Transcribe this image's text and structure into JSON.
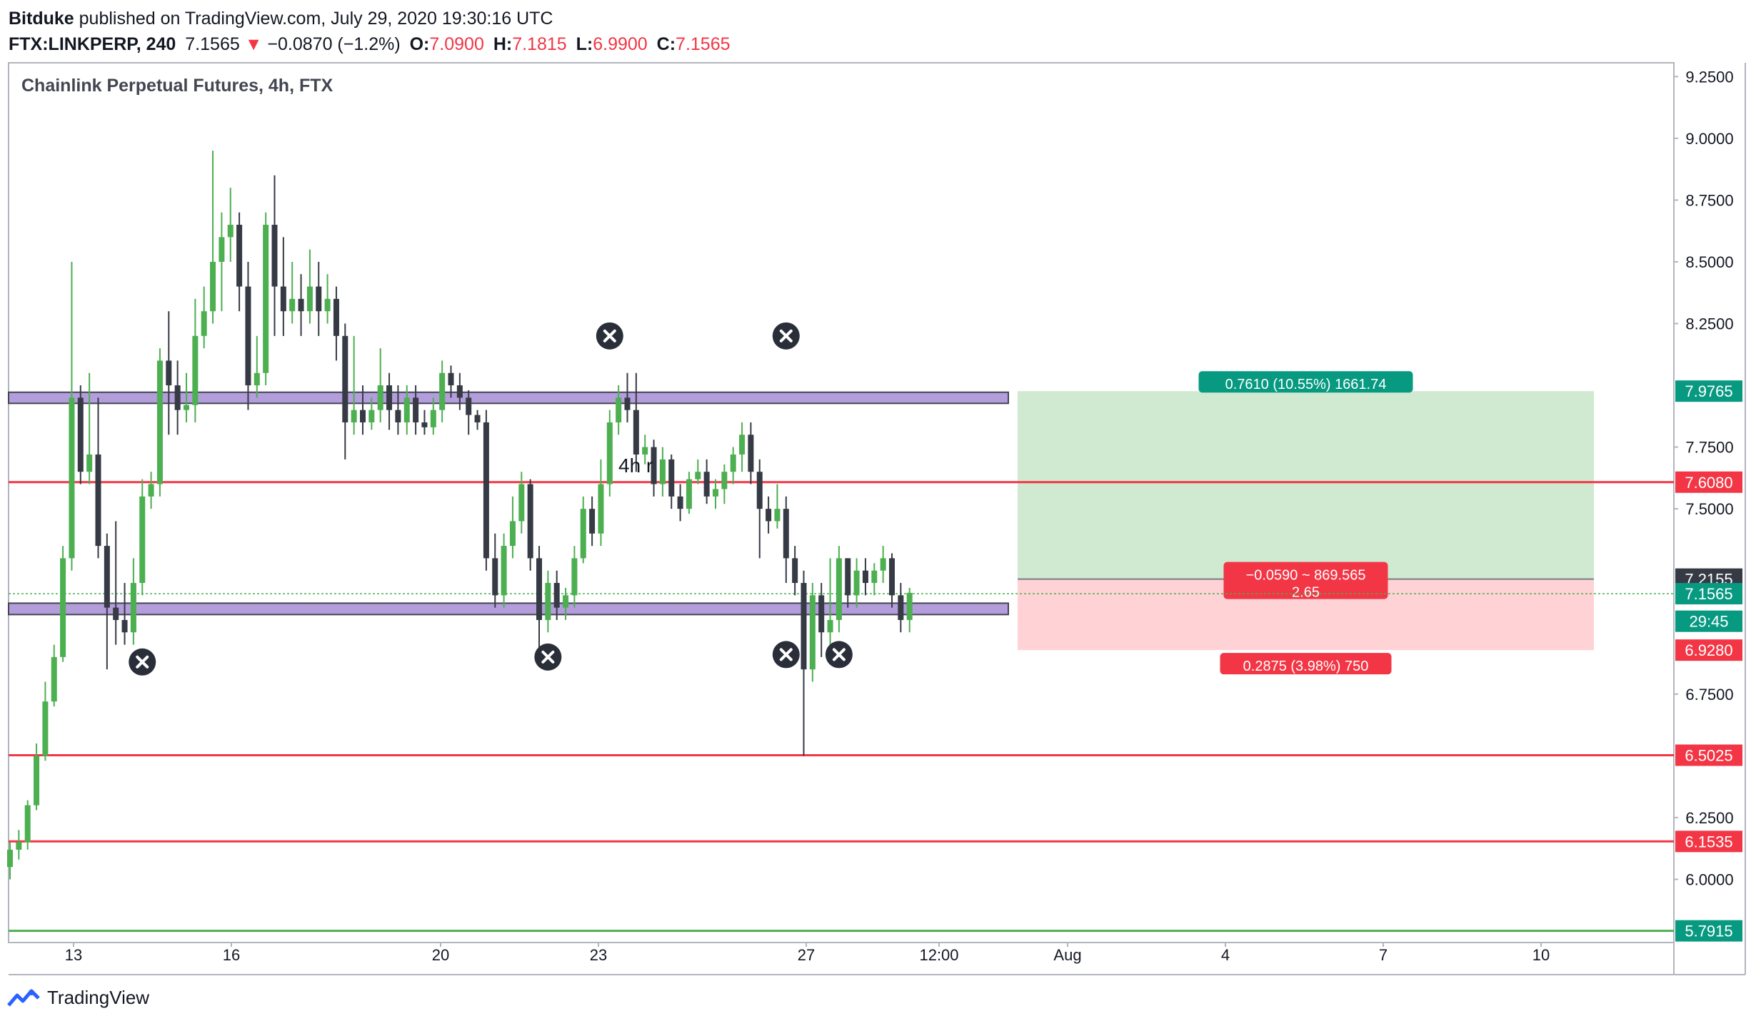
{
  "header": {
    "author": "Bitduke",
    "published_text": "published on TradingView.com, July 29, 2020 19:30:16 UTC",
    "symbol": "FTX:LINKPERP, 240",
    "last": "7.1565",
    "change": "−0.0870 (−1.2%)",
    "o_label": "O:",
    "o_value": "7.0900",
    "h_label": "H:",
    "h_value": "7.1815",
    "l_label": "L:",
    "l_value": "6.9900",
    "c_label": "C:",
    "c_value": "7.1565"
  },
  "footer": {
    "brand": "TradingView"
  },
  "colors": {
    "up": "#4caf50",
    "down": "#363a45",
    "red_line": "#f23645",
    "green_line": "#4caf50",
    "zone_fill": "#b39ddb",
    "zone_stroke": "#434651",
    "target_fill": "#c8e6c9",
    "stop_fill": "#ffcdd2",
    "label_green": "#089981",
    "label_red": "#f23645"
  },
  "chart_data": {
    "type": "candlestick",
    "title": "Chainlink Perpetual Futures, 4h, FTX",
    "ylim": [
      5.75,
      9.3
    ],
    "y_ticks": [
      "9.2500",
      "9.0000",
      "8.7500",
      "8.5000",
      "8.2500",
      "7.7500",
      "7.5000",
      "6.7500",
      "6.2500",
      "6.0000"
    ],
    "x_ticks": [
      "13",
      "16",
      "20",
      "23",
      "27",
      "12:00",
      "Aug",
      "4",
      "7",
      "10"
    ],
    "candles": [
      [
        6.05,
        6.12,
        6.0,
        6.15
      ],
      [
        6.12,
        6.15,
        6.08,
        6.2
      ],
      [
        6.15,
        6.3,
        6.12,
        6.32
      ],
      [
        6.3,
        6.5,
        6.28,
        6.55
      ],
      [
        6.5,
        6.72,
        6.48,
        6.8
      ],
      [
        6.72,
        6.9,
        6.7,
        6.95
      ],
      [
        6.9,
        7.3,
        6.88,
        7.35
      ],
      [
        7.3,
        7.95,
        7.25,
        8.5
      ],
      [
        7.95,
        7.65,
        7.6,
        8.0
      ],
      [
        7.65,
        7.72,
        7.6,
        8.05
      ],
      [
        7.72,
        7.35,
        7.3,
        7.95
      ],
      [
        7.35,
        7.1,
        6.85,
        7.4
      ],
      [
        7.1,
        7.05,
        6.95,
        7.45
      ],
      [
        7.05,
        7.0,
        6.95,
        7.2
      ],
      [
        7.0,
        7.2,
        6.95,
        7.3
      ],
      [
        7.2,
        7.55,
        7.15,
        7.62
      ],
      [
        7.55,
        7.6,
        7.5,
        7.65
      ],
      [
        7.6,
        8.1,
        7.55,
        8.15
      ],
      [
        8.1,
        8.0,
        7.8,
        8.3
      ],
      [
        8.0,
        7.9,
        7.8,
        8.1
      ],
      [
        7.9,
        7.92,
        7.85,
        8.05
      ],
      [
        7.92,
        8.2,
        7.85,
        8.35
      ],
      [
        8.2,
        8.3,
        8.15,
        8.4
      ],
      [
        8.3,
        8.5,
        8.25,
        8.95
      ],
      [
        8.5,
        8.6,
        8.3,
        8.7
      ],
      [
        8.6,
        8.65,
        8.5,
        8.8
      ],
      [
        8.65,
        8.4,
        8.3,
        8.7
      ],
      [
        8.4,
        8.0,
        7.9,
        8.5
      ],
      [
        8.0,
        8.05,
        7.95,
        8.2
      ],
      [
        8.05,
        8.65,
        8.0,
        8.7
      ],
      [
        8.65,
        8.4,
        8.2,
        8.85
      ],
      [
        8.4,
        8.3,
        8.2,
        8.6
      ],
      [
        8.3,
        8.35,
        8.25,
        8.5
      ],
      [
        8.35,
        8.3,
        8.2,
        8.45
      ],
      [
        8.3,
        8.4,
        8.25,
        8.55
      ],
      [
        8.4,
        8.3,
        8.2,
        8.5
      ],
      [
        8.3,
        8.35,
        8.25,
        8.45
      ],
      [
        8.35,
        8.2,
        8.1,
        8.4
      ],
      [
        8.2,
        7.85,
        7.7,
        8.25
      ],
      [
        7.85,
        7.9,
        7.8,
        8.2
      ],
      [
        7.9,
        7.85,
        7.8,
        8.0
      ],
      [
        7.85,
        7.9,
        7.82,
        7.95
      ],
      [
        7.9,
        8.0,
        7.85,
        8.15
      ],
      [
        8.0,
        7.9,
        7.82,
        8.05
      ],
      [
        7.9,
        7.85,
        7.8,
        8.0
      ],
      [
        7.85,
        7.95,
        7.8,
        8.0
      ],
      [
        7.95,
        7.85,
        7.8,
        8.0
      ],
      [
        7.85,
        7.83,
        7.8,
        7.9
      ],
      [
        7.83,
        7.9,
        7.8,
        7.95
      ],
      [
        7.9,
        8.05,
        7.85,
        8.1
      ],
      [
        8.05,
        8.0,
        7.95,
        8.08
      ],
      [
        8.0,
        7.95,
        7.9,
        8.05
      ],
      [
        7.95,
        7.88,
        7.8,
        7.98
      ],
      [
        7.88,
        7.85,
        7.82,
        7.9
      ],
      [
        7.85,
        7.3,
        7.25,
        7.9
      ],
      [
        7.3,
        7.15,
        7.1,
        7.4
      ],
      [
        7.15,
        7.35,
        7.1,
        7.4
      ],
      [
        7.35,
        7.45,
        7.3,
        7.55
      ],
      [
        7.45,
        7.6,
        7.4,
        7.65
      ],
      [
        7.6,
        7.3,
        7.25,
        7.62
      ],
      [
        7.3,
        7.05,
        6.9,
        7.35
      ],
      [
        7.05,
        7.2,
        7.0,
        7.25
      ],
      [
        7.2,
        7.1,
        7.05,
        7.25
      ],
      [
        7.1,
        7.15,
        7.05,
        7.18
      ],
      [
        7.15,
        7.3,
        7.1,
        7.35
      ],
      [
        7.3,
        7.5,
        7.28,
        7.55
      ],
      [
        7.5,
        7.4,
        7.35,
        7.55
      ],
      [
        7.4,
        7.6,
        7.35,
        7.7
      ],
      [
        7.6,
        7.85,
        7.55,
        7.9
      ],
      [
        7.85,
        7.95,
        7.8,
        8.0
      ],
      [
        7.95,
        7.9,
        7.85,
        8.05
      ],
      [
        7.9,
        7.72,
        7.65,
        8.05
      ],
      [
        7.72,
        7.75,
        7.68,
        7.8
      ],
      [
        7.75,
        7.6,
        7.55,
        7.78
      ],
      [
        7.6,
        7.7,
        7.55,
        7.75
      ],
      [
        7.7,
        7.55,
        7.5,
        7.72
      ],
      [
        7.55,
        7.5,
        7.45,
        7.6
      ],
      [
        7.5,
        7.62,
        7.48,
        7.65
      ],
      [
        7.62,
        7.65,
        7.6,
        7.7
      ],
      [
        7.65,
        7.55,
        7.52,
        7.7
      ],
      [
        7.55,
        7.58,
        7.5,
        7.62
      ],
      [
        7.58,
        7.65,
        7.52,
        7.68
      ],
      [
        7.65,
        7.72,
        7.6,
        7.75
      ],
      [
        7.72,
        7.8,
        7.65,
        7.85
      ],
      [
        7.8,
        7.65,
        7.6,
        7.85
      ],
      [
        7.65,
        7.5,
        7.3,
        7.7
      ],
      [
        7.5,
        7.45,
        7.4,
        7.55
      ],
      [
        7.45,
        7.5,
        7.42,
        7.6
      ],
      [
        7.5,
        7.3,
        7.2,
        7.55
      ],
      [
        7.3,
        7.2,
        7.15,
        7.35
      ],
      [
        7.2,
        6.85,
        6.5,
        7.25
      ],
      [
        6.85,
        7.15,
        6.8,
        7.2
      ],
      [
        7.15,
        7.0,
        6.9,
        7.2
      ],
      [
        7.0,
        7.05,
        6.95,
        7.3
      ],
      [
        7.05,
        7.3,
        7.0,
        7.35
      ],
      [
        7.3,
        7.15,
        7.1,
        7.3
      ],
      [
        7.15,
        7.25,
        7.1,
        7.3
      ],
      [
        7.25,
        7.2,
        7.15,
        7.3
      ],
      [
        7.2,
        7.25,
        7.15,
        7.28
      ],
      [
        7.25,
        7.3,
        7.2,
        7.35
      ],
      [
        7.3,
        7.15,
        7.1,
        7.32
      ],
      [
        7.15,
        7.05,
        7.0,
        7.2
      ],
      [
        7.05,
        7.16,
        7.0,
        7.18
      ]
    ],
    "levels": [
      {
        "type": "zone",
        "from": 7.927,
        "to": 7.972
      },
      {
        "type": "zone",
        "from": 7.072,
        "to": 7.118
      },
      {
        "type": "hline",
        "value": 7.608,
        "color": "red"
      },
      {
        "type": "hline",
        "value": 6.5025,
        "color": "red"
      },
      {
        "type": "hline",
        "value": 6.1535,
        "color": "red"
      },
      {
        "type": "hline",
        "value": 5.7915,
        "color": "green"
      }
    ],
    "current_price": 7.1565,
    "price_labels": [
      {
        "text": "7.9765",
        "value": 7.9765,
        "color": "label_green"
      },
      {
        "text": "7.6080",
        "value": 7.608,
        "color": "label_red"
      },
      {
        "text": "7.2155",
        "value": 7.2155,
        "color": "down"
      },
      {
        "text": "7.1565",
        "value": 7.1565,
        "color": "label_green"
      },
      {
        "text": "29:45",
        "value": 7.045,
        "color": "label_green"
      },
      {
        "text": "6.9280",
        "value": 6.928,
        "color": "label_red"
      },
      {
        "text": "6.5025",
        "value": 6.5025,
        "color": "label_red"
      },
      {
        "text": "6.1535",
        "value": 6.1535,
        "color": "label_red"
      },
      {
        "text": "5.7915",
        "value": 5.7915,
        "color": "label_green"
      }
    ],
    "position": {
      "entry": 7.2155,
      "target": 7.9765,
      "stop": 6.928,
      "target_label": "0.7610 (10.55%) 1661.74",
      "stop_label": "0.2875 (3.98%) 750",
      "entry_label_1": "−0.0590 ~ 869.565",
      "entry_label_2": "2.65"
    },
    "annotation_text": "4h r",
    "x_markers": [
      {
        "candle": 15,
        "price": 6.88
      },
      {
        "candle": 61,
        "price": 6.9
      },
      {
        "candle": 68,
        "price": 8.2
      },
      {
        "candle": 88,
        "price": 8.2
      },
      {
        "candle": 88,
        "price": 6.91
      },
      {
        "candle": 94,
        "price": 6.91
      }
    ]
  }
}
